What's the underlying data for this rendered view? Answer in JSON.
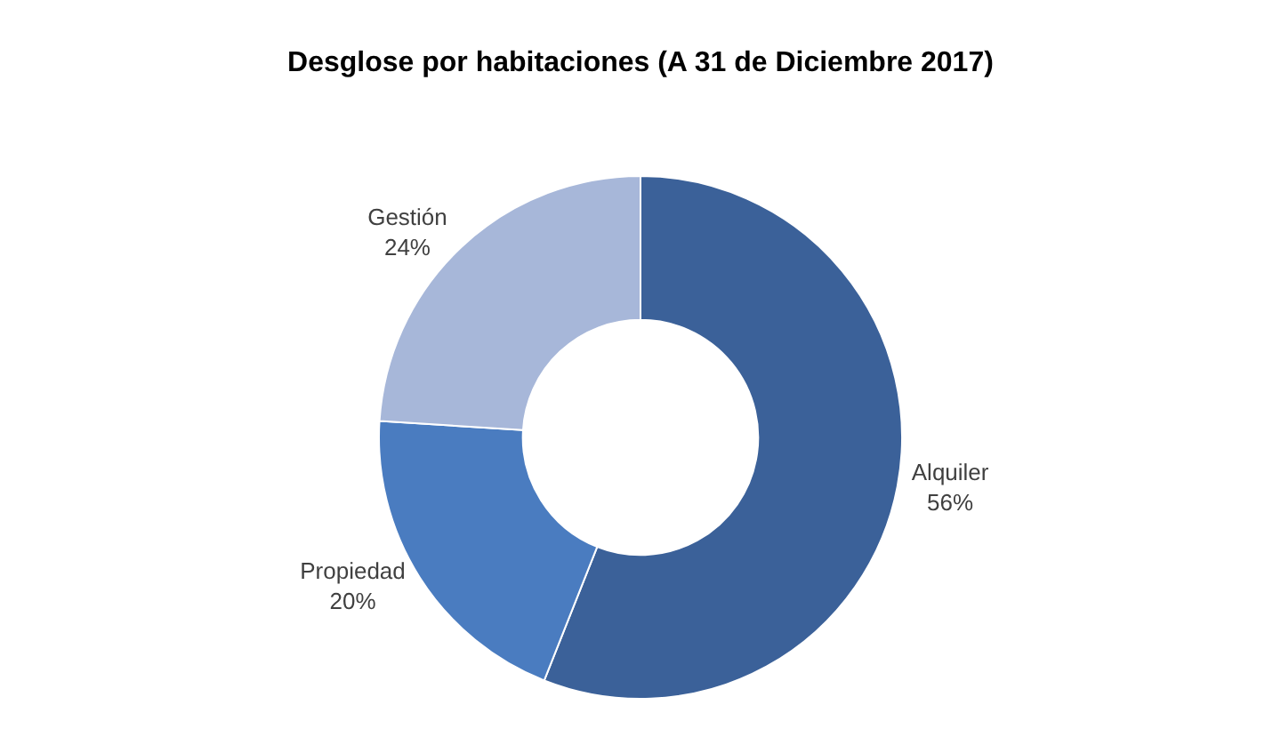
{
  "chart_data": {
    "type": "donut",
    "title": "Desglose por habitaciones (A 31 de Diciembre 2017)",
    "categories": [
      "Alquiler",
      "Propiedad",
      "Gestión"
    ],
    "values": [
      56,
      20,
      24
    ],
    "value_labels": [
      "56%",
      "20%",
      "24%"
    ],
    "colors": [
      "#3b6199",
      "#4a7cc0",
      "#a7b7d9"
    ],
    "legend": false
  }
}
